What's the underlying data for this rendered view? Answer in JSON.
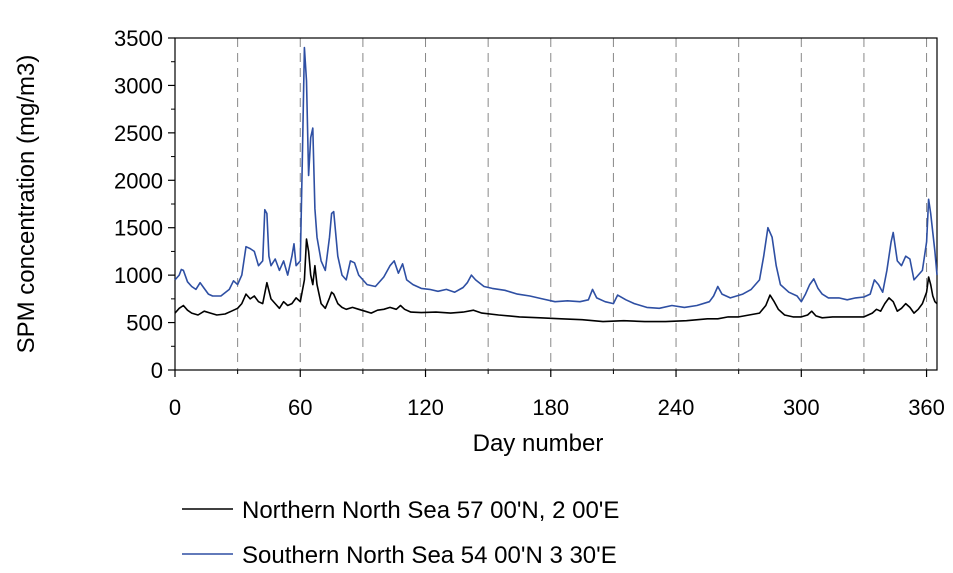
{
  "chart_data": {
    "type": "line",
    "title": "",
    "xlabel": "Day number",
    "ylabel": "SPM concentration (mg/m3)",
    "xlim": [
      0,
      365
    ],
    "ylim": [
      0,
      3500
    ],
    "x_ticks": [
      "0",
      "60",
      "120",
      "180",
      "240",
      "300",
      "360"
    ],
    "y_ticks": [
      "0",
      "500",
      "1000",
      "1500",
      "2000",
      "2500",
      "3000",
      "3500"
    ],
    "grid": "vertical dashed at every 15 days",
    "legend_position": "bottom",
    "series": [
      {
        "name": "Northern North Sea 57 00'N, 2 00'E",
        "color": "#000000",
        "points": [
          [
            0,
            600
          ],
          [
            2,
            650
          ],
          [
            4,
            680
          ],
          [
            6,
            630
          ],
          [
            8,
            600
          ],
          [
            11,
            580
          ],
          [
            14,
            620
          ],
          [
            17,
            600
          ],
          [
            20,
            580
          ],
          [
            24,
            590
          ],
          [
            27,
            620
          ],
          [
            30,
            650
          ],
          [
            32,
            700
          ],
          [
            34,
            800
          ],
          [
            36,
            750
          ],
          [
            38,
            780
          ],
          [
            40,
            720
          ],
          [
            42,
            700
          ],
          [
            44,
            920
          ],
          [
            46,
            750
          ],
          [
            48,
            700
          ],
          [
            50,
            650
          ],
          [
            52,
            720
          ],
          [
            54,
            680
          ],
          [
            56,
            700
          ],
          [
            58,
            760
          ],
          [
            60,
            720
          ],
          [
            62,
            950
          ],
          [
            63,
            1380
          ],
          [
            64,
            1250
          ],
          [
            65,
            1000
          ],
          [
            66,
            900
          ],
          [
            67,
            1100
          ],
          [
            68,
            900
          ],
          [
            70,
            700
          ],
          [
            72,
            650
          ],
          [
            74,
            760
          ],
          [
            75,
            820
          ],
          [
            76,
            800
          ],
          [
            78,
            700
          ],
          [
            80,
            660
          ],
          [
            82,
            640
          ],
          [
            85,
            660
          ],
          [
            88,
            640
          ],
          [
            91,
            620
          ],
          [
            94,
            600
          ],
          [
            97,
            630
          ],
          [
            100,
            640
          ],
          [
            103,
            660
          ],
          [
            106,
            640
          ],
          [
            108,
            680
          ],
          [
            110,
            640
          ],
          [
            113,
            610
          ],
          [
            118,
            605
          ],
          [
            125,
            610
          ],
          [
            132,
            600
          ],
          [
            138,
            610
          ],
          [
            143,
            630
          ],
          [
            147,
            600
          ],
          [
            155,
            580
          ],
          [
            165,
            560
          ],
          [
            175,
            550
          ],
          [
            185,
            540
          ],
          [
            195,
            530
          ],
          [
            205,
            510
          ],
          [
            215,
            520
          ],
          [
            225,
            510
          ],
          [
            235,
            510
          ],
          [
            245,
            520
          ],
          [
            255,
            540
          ],
          [
            260,
            540
          ],
          [
            265,
            560
          ],
          [
            270,
            560
          ],
          [
            275,
            580
          ],
          [
            280,
            600
          ],
          [
            283,
            680
          ],
          [
            285,
            790
          ],
          [
            287,
            720
          ],
          [
            289,
            640
          ],
          [
            292,
            580
          ],
          [
            296,
            560
          ],
          [
            300,
            560
          ],
          [
            303,
            580
          ],
          [
            305,
            620
          ],
          [
            307,
            570
          ],
          [
            310,
            550
          ],
          [
            315,
            560
          ],
          [
            320,
            560
          ],
          [
            325,
            560
          ],
          [
            330,
            560
          ],
          [
            334,
            600
          ],
          [
            336,
            640
          ],
          [
            338,
            620
          ],
          [
            340,
            700
          ],
          [
            342,
            760
          ],
          [
            344,
            720
          ],
          [
            346,
            620
          ],
          [
            348,
            650
          ],
          [
            350,
            700
          ],
          [
            352,
            660
          ],
          [
            354,
            600
          ],
          [
            356,
            640
          ],
          [
            358,
            700
          ],
          [
            360,
            820
          ],
          [
            361,
            980
          ],
          [
            362,
            900
          ],
          [
            363,
            780
          ],
          [
            364,
            720
          ],
          [
            365,
            700
          ]
        ]
      },
      {
        "name": "Southern North Sea 54 00'N 3 30'E",
        "color": "#2E4FA3",
        "points": [
          [
            0,
            950
          ],
          [
            2,
            1000
          ],
          [
            3,
            1060
          ],
          [
            4,
            1050
          ],
          [
            6,
            930
          ],
          [
            8,
            880
          ],
          [
            10,
            850
          ],
          [
            12,
            920
          ],
          [
            14,
            860
          ],
          [
            16,
            800
          ],
          [
            18,
            780
          ],
          [
            22,
            780
          ],
          [
            26,
            850
          ],
          [
            28,
            940
          ],
          [
            30,
            900
          ],
          [
            32,
            1000
          ],
          [
            34,
            1300
          ],
          [
            36,
            1280
          ],
          [
            38,
            1250
          ],
          [
            40,
            1100
          ],
          [
            42,
            1150
          ],
          [
            43,
            1690
          ],
          [
            44,
            1650
          ],
          [
            45,
            1200
          ],
          [
            46,
            1100
          ],
          [
            48,
            1170
          ],
          [
            50,
            1050
          ],
          [
            52,
            1150
          ],
          [
            54,
            1000
          ],
          [
            56,
            1200
          ],
          [
            57,
            1330
          ],
          [
            58,
            1100
          ],
          [
            60,
            1150
          ],
          [
            61,
            2200
          ],
          [
            62,
            3400
          ],
          [
            63,
            3050
          ],
          [
            64,
            2050
          ],
          [
            65,
            2450
          ],
          [
            66,
            2550
          ],
          [
            67,
            1700
          ],
          [
            68,
            1400
          ],
          [
            70,
            1150
          ],
          [
            72,
            1050
          ],
          [
            74,
            1400
          ],
          [
            75,
            1650
          ],
          [
            76,
            1670
          ],
          [
            78,
            1200
          ],
          [
            80,
            1000
          ],
          [
            82,
            950
          ],
          [
            84,
            1150
          ],
          [
            86,
            1130
          ],
          [
            88,
            1000
          ],
          [
            92,
            900
          ],
          [
            96,
            880
          ],
          [
            100,
            980
          ],
          [
            103,
            1100
          ],
          [
            105,
            1150
          ],
          [
            107,
            1020
          ],
          [
            109,
            1120
          ],
          [
            111,
            950
          ],
          [
            114,
            900
          ],
          [
            118,
            860
          ],
          [
            122,
            850
          ],
          [
            126,
            830
          ],
          [
            130,
            850
          ],
          [
            134,
            820
          ],
          [
            138,
            870
          ],
          [
            140,
            920
          ],
          [
            142,
            1000
          ],
          [
            144,
            950
          ],
          [
            148,
            880
          ],
          [
            152,
            860
          ],
          [
            158,
            840
          ],
          [
            164,
            800
          ],
          [
            170,
            780
          ],
          [
            176,
            750
          ],
          [
            182,
            720
          ],
          [
            188,
            730
          ],
          [
            194,
            720
          ],
          [
            198,
            740
          ],
          [
            200,
            850
          ],
          [
            202,
            760
          ],
          [
            206,
            720
          ],
          [
            210,
            700
          ],
          [
            212,
            790
          ],
          [
            216,
            740
          ],
          [
            220,
            700
          ],
          [
            226,
            660
          ],
          [
            232,
            650
          ],
          [
            238,
            680
          ],
          [
            244,
            660
          ],
          [
            250,
            680
          ],
          [
            256,
            720
          ],
          [
            258,
            780
          ],
          [
            260,
            880
          ],
          [
            262,
            800
          ],
          [
            266,
            760
          ],
          [
            272,
            800
          ],
          [
            276,
            850
          ],
          [
            280,
            950
          ],
          [
            282,
            1200
          ],
          [
            284,
            1500
          ],
          [
            286,
            1400
          ],
          [
            288,
            1100
          ],
          [
            290,
            900
          ],
          [
            294,
            820
          ],
          [
            298,
            780
          ],
          [
            300,
            720
          ],
          [
            302,
            800
          ],
          [
            304,
            900
          ],
          [
            306,
            960
          ],
          [
            308,
            860
          ],
          [
            310,
            800
          ],
          [
            313,
            760
          ],
          [
            318,
            760
          ],
          [
            322,
            740
          ],
          [
            326,
            760
          ],
          [
            330,
            770
          ],
          [
            333,
            800
          ],
          [
            335,
            950
          ],
          [
            337,
            900
          ],
          [
            339,
            820
          ],
          [
            341,
            1050
          ],
          [
            343,
            1350
          ],
          [
            344,
            1450
          ],
          [
            346,
            1150
          ],
          [
            348,
            1100
          ],
          [
            350,
            1200
          ],
          [
            352,
            1170
          ],
          [
            354,
            950
          ],
          [
            356,
            1000
          ],
          [
            358,
            1050
          ],
          [
            360,
            1350
          ],
          [
            361,
            1800
          ],
          [
            362,
            1650
          ],
          [
            363,
            1450
          ],
          [
            364,
            1250
          ],
          [
            365,
            1000
          ]
        ]
      }
    ]
  }
}
